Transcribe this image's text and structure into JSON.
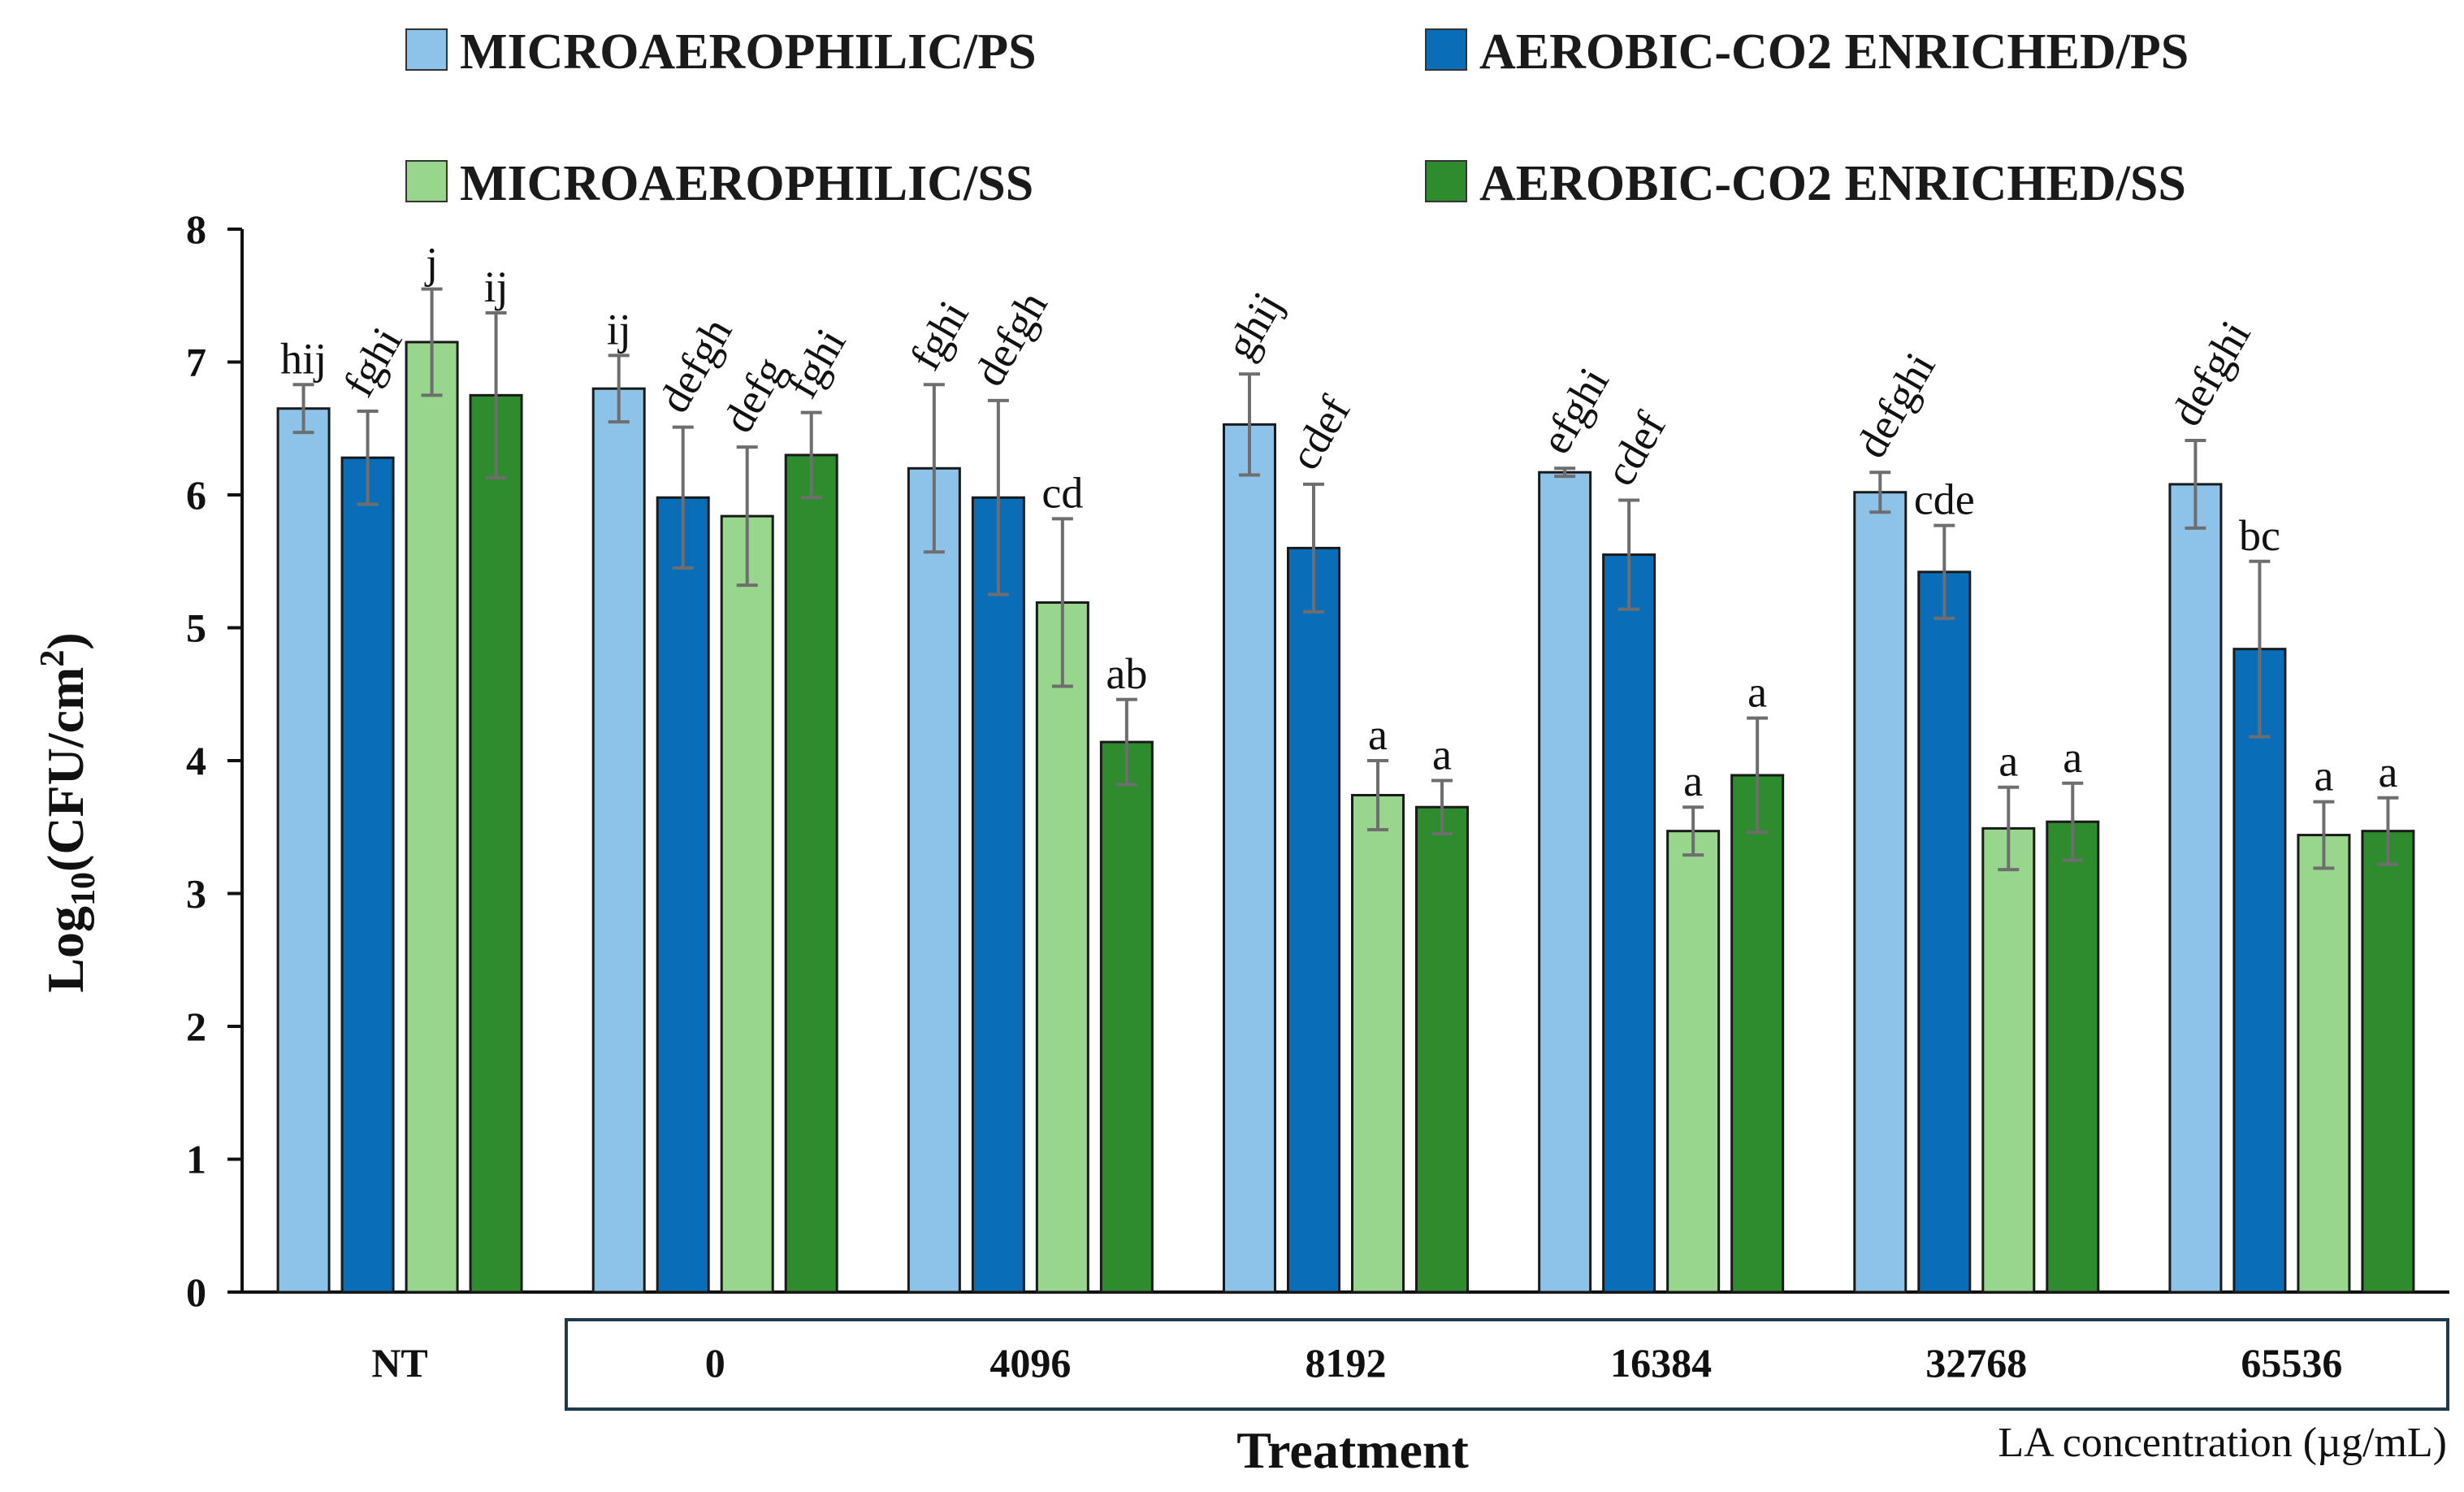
{
  "chart_data": {
    "type": "bar",
    "title": "",
    "xlabel": "Treatment",
    "ylabel_main": "Log",
    "ylabel_sub": "10",
    "ylabel_rest": "(CFU/cm",
    "ylabel_sup": "2",
    "ylabel_end": ")",
    "ylim": [
      0,
      8
    ],
    "yticks": [
      0,
      1,
      2,
      3,
      4,
      5,
      6,
      7,
      8
    ],
    "categories": [
      "NT",
      "0",
      "4096",
      "8192",
      "16384",
      "32768",
      "65536"
    ],
    "bracket_note": "LA concentration (µg/mL)",
    "legend_position": "top",
    "series": [
      {
        "name": "MICROAEROPHILIC/PS",
        "color": "#8dc3e8",
        "values": [
          6.65,
          6.8,
          6.2,
          6.53,
          6.17,
          6.02,
          6.08
        ],
        "errors": [
          0.18,
          0.25,
          0.63,
          0.38,
          0.03,
          0.15,
          0.33
        ],
        "labels": [
          "hij",
          "ij",
          "fghi",
          "ghij",
          "efghi",
          "defghi",
          "defghi"
        ]
      },
      {
        "name": "AEROBIC-CO2 ENRICHED/PS",
        "color": "#0a6db8",
        "values": [
          6.28,
          5.98,
          5.98,
          5.6,
          5.55,
          5.42,
          4.84
        ],
        "errors": [
          0.35,
          0.53,
          0.73,
          0.48,
          0.41,
          0.35,
          0.66
        ],
        "labels": [
          "fghi",
          "defgh",
          "defgh",
          "cdef",
          "cdef",
          "cde",
          "bc"
        ]
      },
      {
        "name": "MICROAEROPHILIC/SS",
        "color": "#97d68c",
        "values": [
          7.15,
          5.84,
          5.19,
          3.74,
          3.47,
          3.49,
          3.44
        ],
        "errors": [
          0.4,
          0.52,
          0.63,
          0.26,
          0.18,
          0.31,
          0.25
        ],
        "labels": [
          "j",
          "defg",
          "cd",
          "a",
          "a",
          "a",
          "a"
        ]
      },
      {
        "name": "AEROBIC-CO2 ENRICHED/SS",
        "color": "#2e8b2e",
        "values": [
          6.75,
          6.3,
          4.14,
          3.65,
          3.89,
          3.54,
          3.47
        ],
        "errors": [
          0.62,
          0.32,
          0.32,
          0.2,
          0.43,
          0.29,
          0.25
        ],
        "labels": [
          "ij",
          "fghi",
          "ab",
          "a",
          "a",
          "a",
          "a"
        ]
      }
    ]
  }
}
